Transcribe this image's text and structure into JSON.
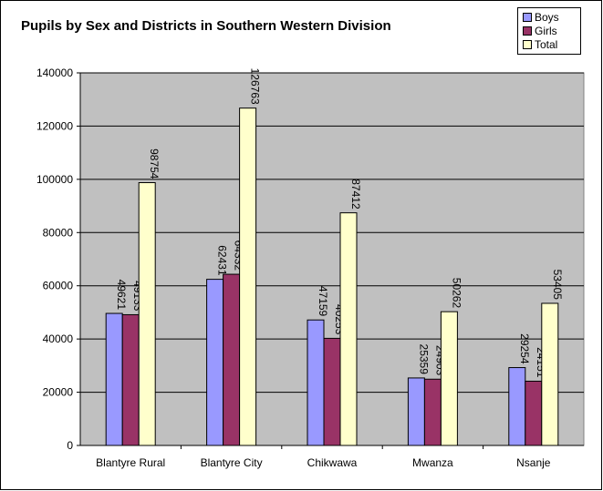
{
  "chart_data": {
    "type": "bar",
    "title": "Pupils by Sex and Districts in Southern Western Division",
    "xlabel": "",
    "ylabel": "",
    "categories": [
      "Blantyre Rural",
      "Blantyre City",
      "Chikwawa",
      "Mwanza",
      "Nsanje"
    ],
    "series": [
      {
        "name": "Boys",
        "values": [
          49621,
          62431,
          47159,
          25359,
          29254
        ],
        "color": "#9999ff"
      },
      {
        "name": "Girls",
        "values": [
          49133,
          64332,
          40253,
          24903,
          24151
        ],
        "color": "#993366"
      },
      {
        "name": "Total",
        "values": [
          98754,
          126763,
          87412,
          50262,
          53405
        ],
        "color": "#ffffcc"
      }
    ],
    "ylim": [
      0,
      140000
    ],
    "yticks": [
      "0",
      "20000",
      "40000",
      "60000",
      "80000",
      "100000",
      "120000",
      "140000"
    ],
    "grid": true,
    "plot_background": "#c0c0c0",
    "legend": "top-right"
  }
}
